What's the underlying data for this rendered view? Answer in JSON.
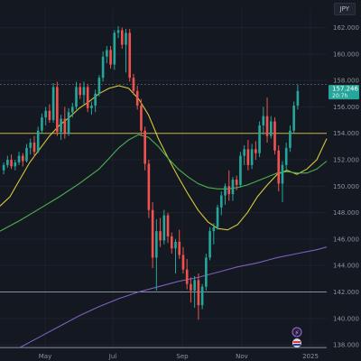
{
  "header": {
    "currency": "JPY"
  },
  "chart_data": {
    "type": "candlestick",
    "y_axis": {
      "ticks": [
        138,
        140,
        142,
        144,
        146,
        148,
        150,
        152,
        154,
        156,
        158,
        160,
        162
      ],
      "range": [
        137.6,
        163.4
      ]
    },
    "x_axis": {
      "labels": [
        "May",
        "Jul",
        "Sep",
        "Nov",
        "2025"
      ]
    },
    "price_label": {
      "value": "157.246",
      "sublabel": "20:7h"
    },
    "horizontal_levels": [
      {
        "value": 157.7,
        "style": "dotted",
        "color": "#4a5466"
      },
      {
        "value": 154.0,
        "style": "solid",
        "color": "#c9b24a"
      },
      {
        "value": 142.0,
        "style": "solid",
        "color": "#8a8fa0"
      },
      {
        "value": 137.8,
        "style": "solid",
        "color": "#8a8fa0"
      }
    ],
    "up_color": "#26a69a",
    "down_color": "#ef5350",
    "series": [
      {
        "name": "ma_fast",
        "color": "#d4c93a",
        "values": [
          [
            0,
            148.5
          ],
          [
            10,
            149.2
          ],
          [
            20,
            150.5
          ],
          [
            30,
            151.8
          ],
          [
            40,
            152.8
          ],
          [
            50,
            153.8
          ],
          [
            60,
            154.6
          ],
          [
            70,
            155.2
          ],
          [
            80,
            155.9
          ],
          [
            90,
            156.4
          ],
          [
            100,
            157.0
          ],
          [
            110,
            157.4
          ],
          [
            120,
            157.6
          ],
          [
            130,
            157.4
          ],
          [
            140,
            156.6
          ],
          [
            150,
            155.4
          ],
          [
            160,
            153.6
          ],
          [
            170,
            152.1
          ],
          [
            180,
            150.7
          ],
          [
            190,
            149.4
          ],
          [
            200,
            148.2
          ],
          [
            210,
            147.3
          ],
          [
            220,
            146.8
          ],
          [
            230,
            146.7
          ],
          [
            240,
            147.1
          ],
          [
            250,
            148.0
          ],
          [
            260,
            149.2
          ],
          [
            270,
            150.1
          ],
          [
            280,
            150.9
          ],
          [
            290,
            151.2
          ],
          [
            300,
            150.9
          ],
          [
            310,
            151.3
          ],
          [
            320,
            152.0
          ],
          [
            330,
            153.6
          ]
        ]
      },
      {
        "name": "ma_slow",
        "color": "#4caf50",
        "values": [
          [
            0,
            146.6
          ],
          [
            20,
            147.4
          ],
          [
            40,
            148.3
          ],
          [
            60,
            149.2
          ],
          [
            80,
            150.2
          ],
          [
            100,
            151.3
          ],
          [
            110,
            152.1
          ],
          [
            120,
            152.9
          ],
          [
            130,
            153.5
          ],
          [
            140,
            153.9
          ],
          [
            150,
            153.7
          ],
          [
            160,
            153.0
          ],
          [
            170,
            152.1
          ],
          [
            180,
            151.3
          ],
          [
            190,
            150.7
          ],
          [
            200,
            150.2
          ],
          [
            210,
            149.9
          ],
          [
            220,
            149.8
          ],
          [
            230,
            149.8
          ],
          [
            240,
            149.9
          ],
          [
            250,
            150.1
          ],
          [
            260,
            150.4
          ],
          [
            270,
            150.7
          ],
          [
            280,
            151.0
          ],
          [
            290,
            151.1
          ],
          [
            300,
            151.0
          ],
          [
            310,
            151.0
          ],
          [
            320,
            151.3
          ],
          [
            330,
            151.9
          ]
        ]
      },
      {
        "name": "ma_long",
        "color": "#7b5fbf",
        "values": [
          [
            20,
            137.8
          ],
          [
            40,
            138.6
          ],
          [
            60,
            139.4
          ],
          [
            80,
            140.2
          ],
          [
            100,
            140.9
          ],
          [
            120,
            141.5
          ],
          [
            140,
            142.0
          ],
          [
            160,
            142.4
          ],
          [
            180,
            142.8
          ],
          [
            200,
            143.1
          ],
          [
            220,
            143.5
          ],
          [
            240,
            143.9
          ],
          [
            260,
            144.2
          ],
          [
            280,
            144.6
          ],
          [
            300,
            144.9
          ],
          [
            320,
            145.2
          ],
          [
            330,
            145.4
          ]
        ]
      }
    ],
    "candles": [
      [
        151.2,
        151.8,
        150.9,
        151.6
      ],
      [
        151.6,
        152.3,
        151.4,
        152.0
      ],
      [
        152.0,
        152.4,
        151.3,
        151.5
      ],
      [
        151.5,
        152.0,
        151.2,
        151.8
      ],
      [
        151.8,
        152.6,
        151.6,
        152.3
      ],
      [
        152.3,
        152.5,
        151.5,
        151.9
      ],
      [
        151.9,
        153.2,
        151.8,
        152.9
      ],
      [
        152.9,
        153.6,
        152.4,
        153.3
      ],
      [
        153.3,
        153.8,
        152.2,
        152.6
      ],
      [
        152.6,
        154.5,
        152.5,
        154.2
      ],
      [
        154.2,
        155.5,
        154.0,
        155.2
      ],
      [
        155.2,
        156.0,
        154.6,
        155.7
      ],
      [
        155.7,
        156.2,
        154.8,
        155.0
      ],
      [
        155.0,
        157.8,
        154.8,
        157.5
      ],
      [
        157.5,
        157.9,
        153.8,
        154.1
      ],
      [
        154.1,
        155.4,
        153.5,
        155.1
      ],
      [
        155.1,
        156.0,
        153.6,
        154.0
      ],
      [
        154.0,
        155.9,
        153.8,
        155.6
      ],
      [
        155.6,
        156.3,
        155.2,
        156.0
      ],
      [
        156.0,
        157.9,
        155.8,
        157.5
      ],
      [
        157.5,
        157.8,
        156.6,
        156.9
      ],
      [
        156.9,
        157.9,
        156.2,
        157.5
      ],
      [
        157.5,
        157.7,
        155.6,
        155.9
      ],
      [
        155.9,
        156.4,
        155.4,
        156.1
      ],
      [
        156.1,
        157.3,
        155.6,
        157.0
      ],
      [
        157.0,
        158.4,
        156.8,
        158.2
      ],
      [
        158.2,
        160.2,
        157.9,
        159.8
      ],
      [
        159.8,
        160.6,
        159.3,
        160.3
      ],
      [
        160.3,
        160.6,
        158.9,
        159.2
      ],
      [
        159.2,
        161.8,
        158.8,
        161.6
      ],
      [
        161.6,
        162.1,
        161.2,
        161.8
      ],
      [
        161.8,
        162.0,
        160.4,
        160.7
      ],
      [
        160.7,
        161.9,
        158.6,
        161.6
      ],
      [
        161.6,
        161.9,
        157.9,
        158.2
      ],
      [
        158.2,
        158.5,
        156.9,
        157.2
      ],
      [
        157.2,
        157.6,
        155.8,
        156.1
      ],
      [
        156.1,
        156.6,
        153.8,
        154.2
      ],
      [
        154.2,
        154.5,
        151.2,
        151.7
      ],
      [
        151.7,
        152.0,
        147.6,
        148.2
      ],
      [
        148.2,
        148.8,
        143.8,
        144.6
      ],
      [
        144.6,
        147.5,
        142.1,
        146.6
      ],
      [
        146.6,
        147.6,
        145.4,
        145.9
      ],
      [
        145.9,
        148.2,
        145.6,
        147.8
      ],
      [
        147.8,
        148.0,
        145.7,
        146.2
      ],
      [
        146.2,
        146.5,
        144.9,
        145.3
      ],
      [
        145.3,
        146.0,
        143.4,
        145.8
      ],
      [
        145.8,
        146.7,
        144.5,
        144.8
      ],
      [
        144.8,
        145.4,
        143.4,
        143.7
      ],
      [
        143.7,
        144.5,
        142.2,
        142.6
      ],
      [
        142.6,
        143.1,
        141.2,
        142.1
      ],
      [
        142.1,
        143.2,
        140.8,
        142.9
      ],
      [
        142.9,
        143.4,
        139.9,
        141.0
      ],
      [
        141.0,
        142.6,
        140.7,
        142.4
      ],
      [
        142.4,
        144.9,
        142.1,
        144.6
      ],
      [
        144.6,
        146.9,
        144.4,
        146.6
      ],
      [
        146.6,
        147.2,
        145.6,
        146.9
      ],
      [
        146.9,
        148.6,
        146.7,
        148.4
      ],
      [
        148.4,
        149.6,
        147.8,
        149.3
      ],
      [
        149.3,
        150.2,
        148.6,
        150.0
      ],
      [
        150.0,
        151.2,
        148.9,
        149.4
      ],
      [
        149.4,
        150.7,
        148.9,
        150.5
      ],
      [
        150.5,
        150.8,
        149.7,
        150.1
      ],
      [
        150.1,
        152.6,
        149.9,
        152.3
      ],
      [
        152.3,
        153.1,
        151.6,
        152.8
      ],
      [
        152.8,
        153.5,
        151.2,
        151.6
      ],
      [
        151.6,
        153.2,
        151.3,
        152.8
      ],
      [
        152.8,
        153.4,
        152.0,
        152.5
      ],
      [
        152.5,
        154.9,
        152.2,
        154.6
      ],
      [
        154.6,
        156.0,
        153.9,
        155.3
      ],
      [
        155.3,
        156.7,
        153.3,
        153.8
      ],
      [
        153.8,
        155.3,
        153.6,
        154.9
      ],
      [
        154.9,
        155.2,
        152.4,
        152.7
      ],
      [
        152.7,
        153.1,
        149.6,
        150.2
      ],
      [
        150.2,
        151.9,
        148.8,
        151.6
      ],
      [
        151.6,
        153.3,
        151.2,
        152.9
      ],
      [
        152.9,
        154.6,
        152.6,
        154.2
      ],
      [
        154.2,
        156.4,
        154.0,
        156.1
      ],
      [
        156.1,
        157.7,
        155.8,
        157.2
      ]
    ]
  },
  "corner_icons": [
    {
      "name": "zap-icon",
      "glyph": "⚡"
    },
    {
      "name": "flag-icon",
      "glyph": "⚑"
    }
  ]
}
